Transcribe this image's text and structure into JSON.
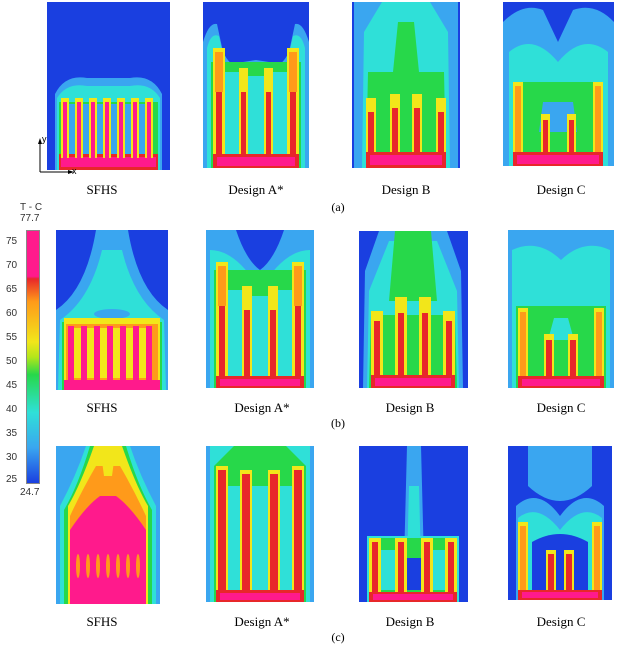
{
  "figure": {
    "designs": [
      "SFHS",
      "Design A*",
      "Design B",
      "Design C"
    ],
    "rows": [
      {
        "tag": "(a)"
      },
      {
        "tag": "(b)"
      },
      {
        "tag": "(c)"
      }
    ]
  },
  "colorbar": {
    "title": "T - C",
    "max_label": "77.7",
    "min_label": "24.7",
    "ticks": [
      "75",
      "70",
      "65",
      "60",
      "55",
      "50",
      "45",
      "40",
      "35",
      "30",
      "25"
    ]
  },
  "axes": {
    "x": "x",
    "y": "y"
  },
  "colors": {
    "background_field": "#1a3fe0",
    "hot": "#ff1a8c",
    "red": "#e8272a",
    "orange": "#ff9a1a",
    "yellow": "#f2e61a",
    "green": "#27d84a",
    "cyan": "#2fe0d8",
    "lightblue": "#3aa6f0"
  }
}
